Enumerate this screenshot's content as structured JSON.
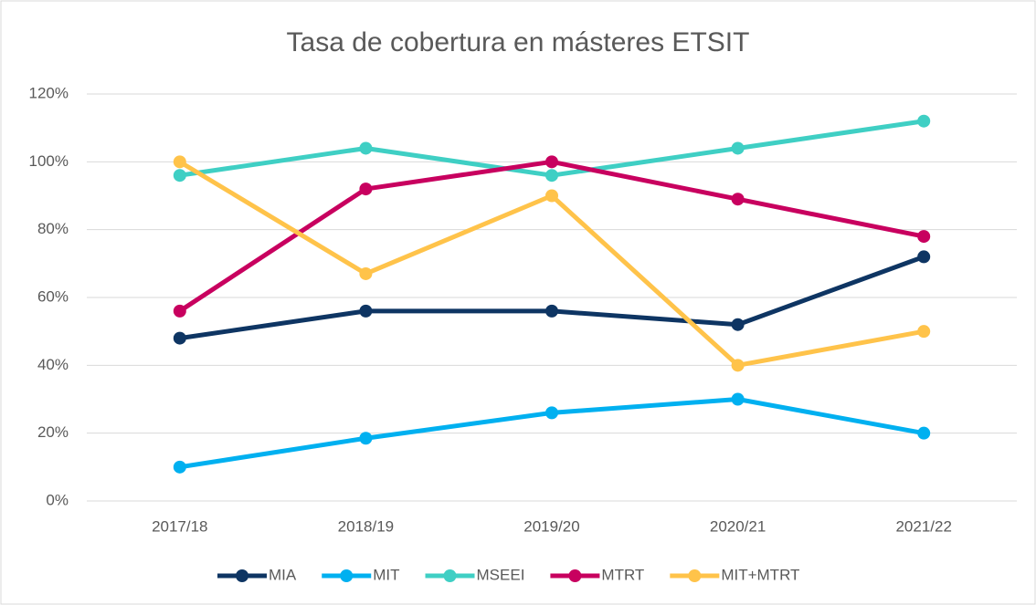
{
  "chart_data": {
    "type": "line",
    "title": "Tasa de cobertura en másteres ETSIT",
    "categories": [
      "2017/18",
      "2018/19",
      "2019/20",
      "2020/21",
      "2021/22"
    ],
    "series": [
      {
        "name": "MIA",
        "color": "#0e3563",
        "values": [
          48,
          56,
          56,
          52,
          72
        ]
      },
      {
        "name": "MIT",
        "color": "#00b0f0",
        "values": [
          10,
          18.5,
          26,
          30,
          20
        ]
      },
      {
        "name": "MSEEI",
        "color": "#3fcfc4",
        "values": [
          96,
          104,
          96,
          104,
          112
        ]
      },
      {
        "name": "MTRT",
        "color": "#c8005f",
        "values": [
          56,
          92,
          100,
          89,
          78
        ]
      },
      {
        "name": "MIT+MTRT",
        "color": "#ffc34a",
        "values": [
          100,
          67,
          90,
          40,
          50
        ]
      }
    ],
    "ylim": [
      0,
      120
    ],
    "yticks": [
      {
        "value": 0,
        "label": "0%"
      },
      {
        "value": 20,
        "label": "20%"
      },
      {
        "value": 40,
        "label": "40%"
      },
      {
        "value": 60,
        "label": "60%"
      },
      {
        "value": 80,
        "label": "80%"
      },
      {
        "value": 100,
        "label": "100%"
      },
      {
        "value": 120,
        "label": "120%"
      }
    ],
    "grid": true,
    "legend": "bottom"
  }
}
